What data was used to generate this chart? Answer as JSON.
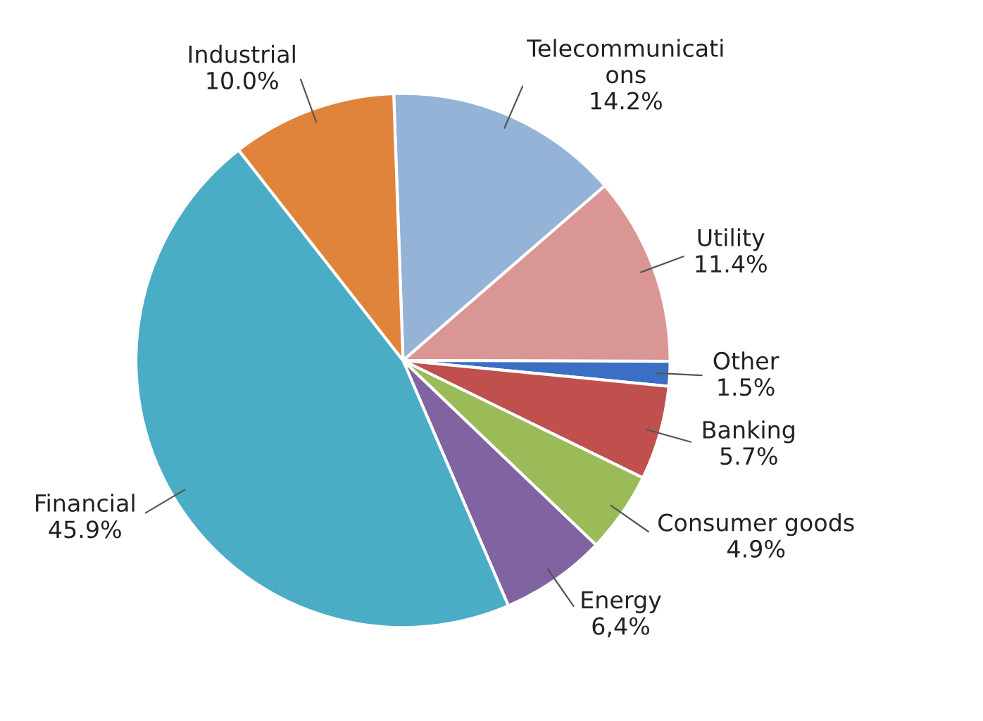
{
  "chart_data": {
    "type": "pie",
    "categories": [
      "Telecommunicati\nons",
      "Utility",
      "Other",
      "Banking",
      "Consumer goods",
      "Energy",
      "Financial",
      "Industrial"
    ],
    "values": [
      14.2,
      11.4,
      1.5,
      5.7,
      4.9,
      6.4,
      45.9,
      10.0
    ],
    "value_labels": [
      "14.2%",
      "11.4%",
      "1.5%",
      "5.7%",
      "4.9%",
      "6,4%",
      "45.9%",
      "10.0%"
    ],
    "colors": [
      "#95b3d7",
      "#d99694",
      "#3a6fc4",
      "#c0504d",
      "#9bbb59",
      "#8064a2",
      "#4bacc6",
      "#e0843c"
    ]
  }
}
